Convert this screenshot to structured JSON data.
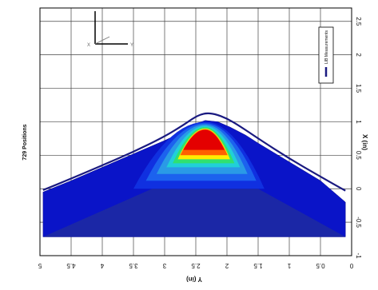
{
  "chart_data": {
    "type": "area",
    "title": "729 Positions",
    "xlabel": "Y (in)",
    "ylabel": "X (in)",
    "x_ticks": [
      "5",
      "4.5",
      "4",
      "3.5",
      "3",
      "2.5",
      "2",
      "1.5",
      "1",
      "0.5",
      "0"
    ],
    "y_ticks": [
      "2.5",
      "2",
      "1.5",
      "1",
      "0.5",
      "0",
      "-0.5",
      "-1"
    ],
    "xlim": [
      5,
      0
    ],
    "ylim": [
      -1,
      2.7
    ],
    "grid": true,
    "legend": {
      "placement": "top-right",
      "entries": [
        "LIB Measurements"
      ]
    },
    "series": [
      {
        "name": "LIB Measurements",
        "x": [
          4.95,
          4.5,
          4.0,
          3.5,
          3.0,
          2.7,
          2.5,
          2.35,
          2.2,
          2.0,
          1.8,
          1.5,
          1.0,
          0.5,
          0.1
        ],
        "values": [
          -0.02,
          0.15,
          0.35,
          0.55,
          0.78,
          0.95,
          1.08,
          1.13,
          1.12,
          1.05,
          0.94,
          0.75,
          0.45,
          0.18,
          -0.03
        ]
      }
    ],
    "surface": {
      "x": [
        4.95,
        4.5,
        4.0,
        3.5,
        3.0,
        2.75,
        2.55,
        2.35,
        2.15,
        1.95,
        1.7,
        1.5,
        1.0,
        0.5,
        0.1
      ],
      "top": [
        -0.05,
        0.12,
        0.32,
        0.52,
        0.72,
        0.83,
        0.95,
        1.02,
        1.0,
        0.92,
        0.8,
        0.68,
        0.4,
        0.12,
        -0.2
      ],
      "bottom": [
        -0.72,
        -0.72,
        -0.72,
        -0.72,
        -0.72,
        -0.72,
        -0.72,
        -0.72,
        -0.72,
        -0.72,
        -0.72,
        -0.72,
        -0.72,
        -0.72,
        -0.72
      ],
      "colors": [
        "#0a14c8",
        "#1030e0",
        "#1c62ee",
        "#2a9ae6",
        "#20d0d8",
        "#30e070",
        "#ffee00",
        "#ff6000",
        "#e40000"
      ],
      "shadow_color": "#1e2aa0"
    },
    "axis_gizmo": {
      "label_x": "X",
      "label_y": "Y"
    }
  }
}
